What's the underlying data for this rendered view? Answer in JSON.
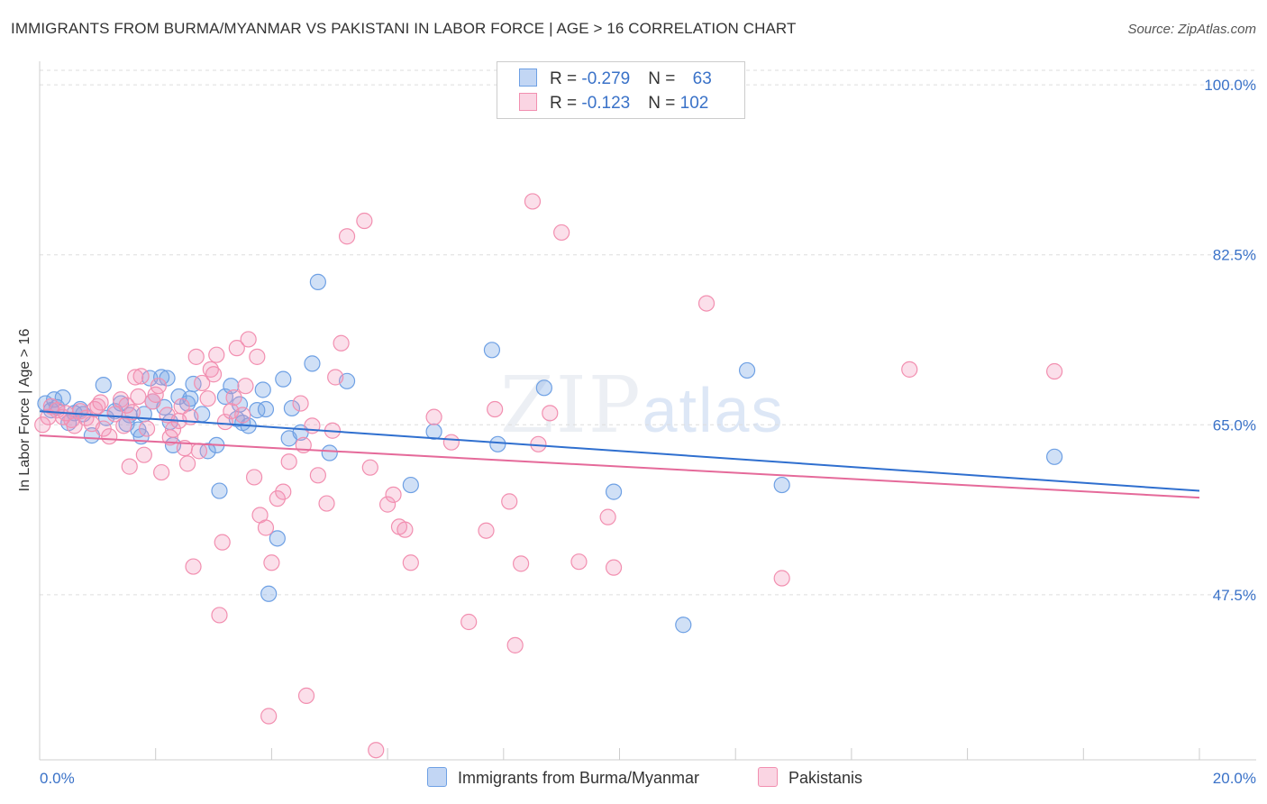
{
  "title": "IMMIGRANTS FROM BURMA/MYANMAR VS PAKISTANI IN LABOR FORCE | AGE > 16 CORRELATION CHART",
  "source": "Source: ZipAtlas.com",
  "watermark": {
    "a": "ZIP",
    "b": "atlas"
  },
  "legend": {
    "rows": [
      {
        "r_label": "R = ",
        "r_value": "-0.279",
        "n_label": "N = ",
        "n_value": "63",
        "color": "#6ea0e4"
      },
      {
        "r_label": "R = ",
        "r_value": "-0.123",
        "n_label": "N = ",
        "n_value": "102",
        "color": "#f28fb0"
      }
    ]
  },
  "bottom_legend": [
    {
      "label": "Immigrants from Burma/Myanmar",
      "color": "#6ea0e4"
    },
    {
      "label": "Pakistanis",
      "color": "#f28fb0"
    }
  ],
  "chart_data": {
    "type": "scatter",
    "title": "IMMIGRANTS FROM BURMA/MYANMAR VS PAKISTANI IN LABOR FORCE | AGE > 16 CORRELATION CHART",
    "xlabel": "",
    "ylabel": "In Labor Force | Age > 16",
    "xlim": [
      0,
      20
    ],
    "ylim": [
      30.5,
      101.5
    ],
    "x_tick_labels": {
      "min": "0.0%",
      "max": "20.0%"
    },
    "y_ticks": [
      {
        "value": 47.5,
        "label": "47.5%"
      },
      {
        "value": 65.0,
        "label": "65.0%"
      },
      {
        "value": 82.5,
        "label": "82.5%"
      },
      {
        "value": 100.0,
        "label": "100.0%"
      }
    ],
    "grid": true,
    "series": [
      {
        "name": "Immigrants from Burma/Myanmar",
        "color": "#6ea0e4",
        "fill": "rgba(120,165,230,0.35)",
        "trend": {
          "x": [
            0,
            20
          ],
          "y": [
            66.4,
            58.2
          ]
        },
        "points": [
          [
            0.1,
            67.2
          ],
          [
            0.2,
            66.5
          ],
          [
            0.25,
            67.6
          ],
          [
            0.3,
            66.8
          ],
          [
            0.4,
            67.8
          ],
          [
            0.5,
            65.2
          ],
          [
            0.6,
            66.2
          ],
          [
            0.7,
            66.6
          ],
          [
            0.75,
            66.1
          ],
          [
            0.9,
            63.9
          ],
          [
            1.1,
            69.1
          ],
          [
            1.15,
            65.7
          ],
          [
            1.3,
            66.4
          ],
          [
            1.4,
            67.2
          ],
          [
            1.5,
            65.1
          ],
          [
            1.55,
            66.0
          ],
          [
            1.7,
            64.5
          ],
          [
            1.75,
            63.8
          ],
          [
            1.8,
            66.1
          ],
          [
            1.9,
            69.8
          ],
          [
            1.95,
            67.4
          ],
          [
            2.1,
            69.9
          ],
          [
            2.15,
            66.8
          ],
          [
            2.2,
            69.8
          ],
          [
            2.25,
            65.3
          ],
          [
            2.3,
            62.9
          ],
          [
            2.4,
            67.9
          ],
          [
            2.55,
            67.2
          ],
          [
            2.6,
            67.7
          ],
          [
            2.65,
            69.2
          ],
          [
            2.8,
            66.1
          ],
          [
            2.9,
            62.3
          ],
          [
            3.05,
            62.9
          ],
          [
            3.1,
            58.2
          ],
          [
            3.2,
            67.9
          ],
          [
            3.3,
            69.0
          ],
          [
            3.4,
            65.6
          ],
          [
            3.45,
            67.1
          ],
          [
            3.5,
            65.2
          ],
          [
            3.6,
            64.9
          ],
          [
            3.75,
            66.5
          ],
          [
            3.85,
            68.6
          ],
          [
            3.9,
            66.6
          ],
          [
            3.95,
            47.6
          ],
          [
            4.1,
            53.3
          ],
          [
            4.2,
            69.7
          ],
          [
            4.3,
            63.6
          ],
          [
            4.35,
            66.7
          ],
          [
            4.5,
            64.2
          ],
          [
            4.7,
            71.3
          ],
          [
            4.8,
            79.7
          ],
          [
            5.0,
            62.1
          ],
          [
            5.3,
            69.5
          ],
          [
            6.4,
            58.8
          ],
          [
            6.8,
            64.3
          ],
          [
            7.8,
            72.7
          ],
          [
            7.9,
            63.0
          ],
          [
            8.7,
            68.8
          ],
          [
            9.9,
            58.1
          ],
          [
            11.1,
            44.4
          ],
          [
            12.2,
            70.6
          ],
          [
            12.8,
            58.8
          ],
          [
            17.5,
            61.7
          ]
        ]
      },
      {
        "name": "Pakistanis",
        "color": "#f28fb0",
        "fill": "rgba(242,150,185,0.30)",
        "trend": {
          "x": [
            0,
            20
          ],
          "y": [
            63.9,
            57.5
          ]
        },
        "points": [
          [
            0.05,
            65.0
          ],
          [
            0.15,
            65.8
          ],
          [
            0.2,
            66.9
          ],
          [
            0.3,
            66.5
          ],
          [
            0.4,
            65.8
          ],
          [
            0.45,
            66.2
          ],
          [
            0.55,
            65.5
          ],
          [
            0.6,
            64.9
          ],
          [
            0.7,
            66.4
          ],
          [
            0.8,
            65.7
          ],
          [
            0.9,
            65.1
          ],
          [
            0.95,
            66.6
          ],
          [
            1.0,
            66.9
          ],
          [
            1.05,
            67.3
          ],
          [
            1.1,
            64.6
          ],
          [
            1.2,
            63.8
          ],
          [
            1.3,
            66.1
          ],
          [
            1.4,
            67.6
          ],
          [
            1.45,
            64.9
          ],
          [
            1.5,
            67.0
          ],
          [
            1.55,
            60.7
          ],
          [
            1.6,
            66.3
          ],
          [
            1.65,
            69.9
          ],
          [
            1.7,
            67.9
          ],
          [
            1.75,
            70.0
          ],
          [
            1.8,
            61.9
          ],
          [
            1.85,
            64.6
          ],
          [
            1.95,
            67.4
          ],
          [
            2.0,
            68.1
          ],
          [
            2.05,
            69.0
          ],
          [
            2.1,
            60.1
          ],
          [
            2.2,
            66.0
          ],
          [
            2.25,
            63.7
          ],
          [
            2.3,
            64.5
          ],
          [
            2.4,
            65.4
          ],
          [
            2.45,
            66.9
          ],
          [
            2.5,
            62.6
          ],
          [
            2.55,
            61.0
          ],
          [
            2.6,
            65.8
          ],
          [
            2.65,
            50.4
          ],
          [
            2.7,
            72.0
          ],
          [
            2.75,
            62.3
          ],
          [
            2.8,
            69.3
          ],
          [
            2.9,
            67.7
          ],
          [
            2.95,
            70.7
          ],
          [
            3.0,
            70.2
          ],
          [
            3.05,
            72.2
          ],
          [
            3.1,
            45.4
          ],
          [
            3.15,
            52.9
          ],
          [
            3.2,
            65.3
          ],
          [
            3.3,
            66.4
          ],
          [
            3.35,
            67.8
          ],
          [
            3.4,
            72.9
          ],
          [
            3.5,
            66.0
          ],
          [
            3.55,
            69.0
          ],
          [
            3.6,
            73.8
          ],
          [
            3.7,
            59.6
          ],
          [
            3.75,
            72.0
          ],
          [
            3.8,
            55.7
          ],
          [
            3.9,
            54.4
          ],
          [
            3.95,
            35.0
          ],
          [
            4.0,
            50.8
          ],
          [
            4.1,
            57.4
          ],
          [
            4.2,
            58.1
          ],
          [
            4.3,
            61.2
          ],
          [
            4.5,
            67.2
          ],
          [
            4.55,
            62.9
          ],
          [
            4.6,
            37.1
          ],
          [
            4.7,
            64.9
          ],
          [
            4.8,
            59.8
          ],
          [
            4.95,
            56.9
          ],
          [
            5.05,
            64.4
          ],
          [
            5.1,
            69.9
          ],
          [
            5.2,
            73.4
          ],
          [
            5.3,
            84.4
          ],
          [
            5.6,
            86.0
          ],
          [
            5.7,
            60.6
          ],
          [
            5.8,
            31.5
          ],
          [
            6.0,
            56.8
          ],
          [
            6.1,
            57.8
          ],
          [
            6.2,
            54.5
          ],
          [
            6.3,
            54.2
          ],
          [
            6.4,
            50.8
          ],
          [
            6.8,
            65.8
          ],
          [
            7.1,
            63.2
          ],
          [
            7.4,
            44.7
          ],
          [
            7.7,
            54.1
          ],
          [
            7.85,
            66.6
          ],
          [
            8.1,
            57.1
          ],
          [
            8.2,
            42.3
          ],
          [
            8.3,
            50.7
          ],
          [
            8.5,
            88.0
          ],
          [
            8.6,
            63.0
          ],
          [
            8.8,
            66.2
          ],
          [
            9.0,
            84.8
          ],
          [
            9.3,
            50.9
          ],
          [
            9.8,
            55.5
          ],
          [
            9.9,
            50.3
          ],
          [
            11.5,
            77.5
          ],
          [
            12.8,
            49.2
          ],
          [
            15.0,
            70.7
          ],
          [
            17.5,
            70.5
          ]
        ]
      }
    ]
  }
}
